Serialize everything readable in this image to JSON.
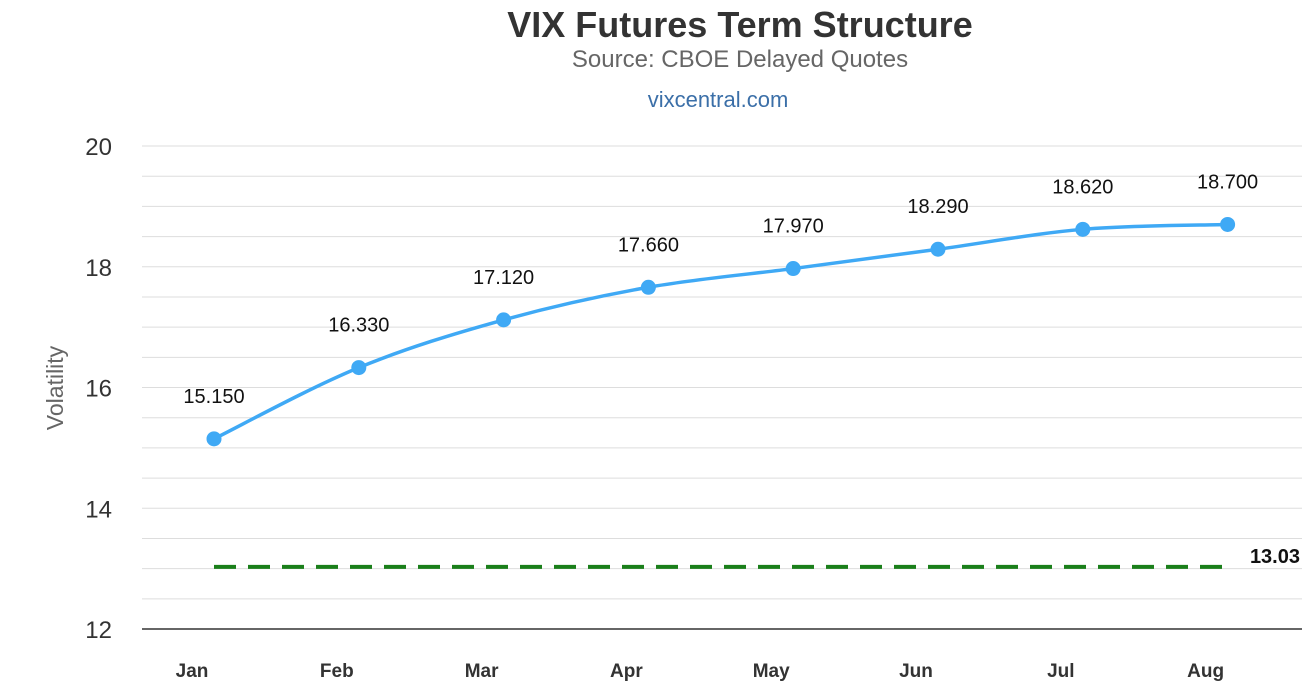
{
  "chart_data": {
    "type": "line",
    "title": "VIX Futures Term Structure",
    "subtitle": "Source: CBOE Delayed Quotes",
    "credit": "vixcentral.com",
    "xlabel": "",
    "ylabel": "Volatility",
    "categories": [
      "Jan",
      "Feb",
      "Mar",
      "Apr",
      "May",
      "Jun",
      "Jul",
      "Aug"
    ],
    "series": [
      {
        "values": [
          15.15,
          16.33,
          17.12,
          17.66,
          17.97,
          18.29,
          18.62,
          18.7
        ],
        "labels": [
          "15.150",
          "16.330",
          "17.120",
          "17.660",
          "17.970",
          "18.290",
          "18.620",
          "18.700"
        ],
        "color": "#3fa9f5",
        "marker": "circle"
      }
    ],
    "reference_line": {
      "value": 13.03,
      "label": "13.03",
      "color": "#1a7f1a",
      "style": "dashed"
    },
    "ylim": [
      12,
      20
    ],
    "yticks": [
      "12",
      "14",
      "16",
      "18",
      "20"
    ],
    "grid": true,
    "legend": false
  }
}
